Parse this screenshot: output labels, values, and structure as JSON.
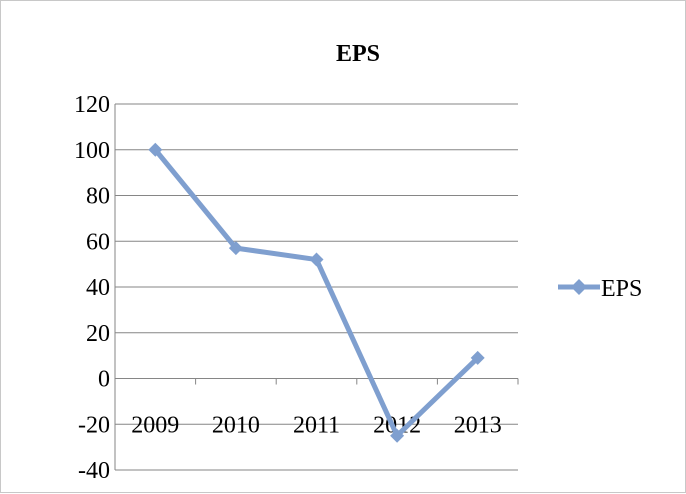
{
  "chart_data": {
    "type": "line",
    "title": "EPS",
    "categories": [
      "2009",
      "2010",
      "2011",
      "2012",
      "2013"
    ],
    "series": [
      {
        "name": "EPS",
        "values": [
          100,
          57,
          52,
          -25,
          9
        ]
      }
    ],
    "ylim": [
      -40,
      120
    ],
    "yticks": [
      "120",
      "100",
      "80",
      "60",
      "40",
      "20",
      "0",
      "-20",
      "-40"
    ],
    "grid": true,
    "legend": "right",
    "colors": {
      "series": "#7f9fcf",
      "grid": "#868686",
      "axis": "#868686"
    }
  }
}
